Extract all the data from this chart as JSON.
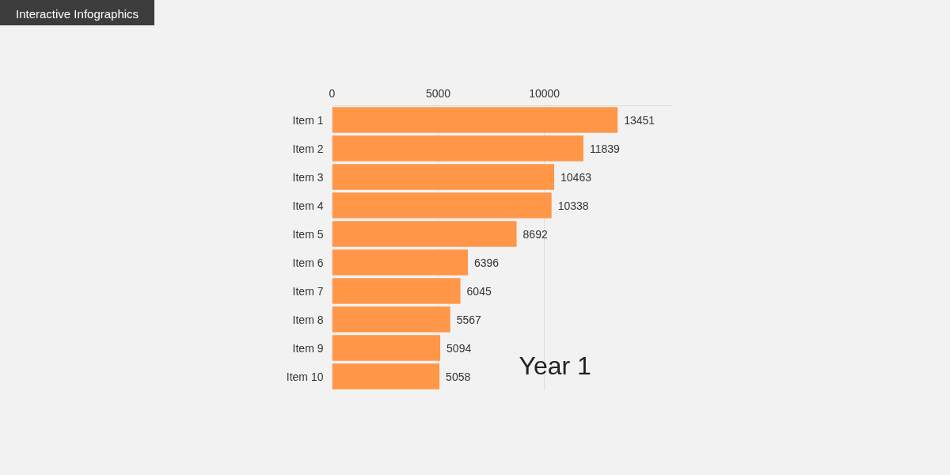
{
  "chart_data": {
    "type": "bar",
    "orientation": "horizontal",
    "title": "Interactive Infographics",
    "categories": [
      "Item 1",
      "Item 2",
      "Item 3",
      "Item 4",
      "Item 5",
      "Item 6",
      "Item 7",
      "Item 8",
      "Item 9",
      "Item 10"
    ],
    "values": [
      13451,
      11839,
      10463,
      10338,
      8692,
      6396,
      6045,
      5567,
      5094,
      5058
    ],
    "color": "#ff9648",
    "xlim": [
      0,
      16000
    ],
    "xticks": [
      0,
      5000,
      10000
    ],
    "grid": "x",
    "data_labels": true,
    "annotations": [
      "Year 1"
    ]
  }
}
